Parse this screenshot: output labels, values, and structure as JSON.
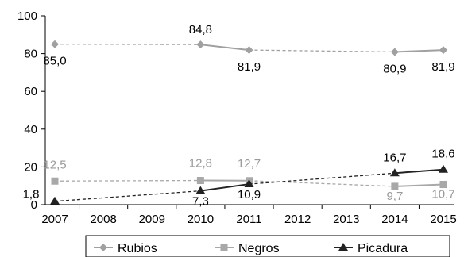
{
  "chart_data": {
    "type": "line",
    "title": "",
    "xlabel": "",
    "ylabel": "",
    "x": [
      2007,
      2008,
      2009,
      2010,
      2011,
      2012,
      2013,
      2014,
      2015
    ],
    "x_tick_labels": [
      "2007",
      "2008",
      "2009",
      "2010",
      "2011",
      "2012",
      "2013",
      "2014",
      "2015"
    ],
    "ylim": [
      0,
      100
    ],
    "y_ticks": [
      0,
      20,
      40,
      60,
      80,
      100
    ],
    "y_tick_labels": [
      "0",
      "20",
      "40",
      "60",
      "80",
      "100"
    ],
    "grid": false,
    "legend_position": "bottom",
    "series": [
      {
        "name": "Rubios",
        "color": "#a0a0a0",
        "marker": "diamond",
        "label_color": "#000000",
        "points": [
          {
            "x": 2007,
            "y": 85.0,
            "label": "85,0"
          },
          {
            "x": 2010,
            "y": 84.8,
            "label": "84,8"
          },
          {
            "x": 2011,
            "y": 81.9,
            "label": "81,9"
          },
          {
            "x": 2014,
            "y": 80.9,
            "label": "80,9"
          },
          {
            "x": 2015,
            "y": 81.9,
            "label": "81,9"
          }
        ]
      },
      {
        "name": "Negros",
        "color": "#a8a8a8",
        "marker": "square",
        "label_color": "#9a9a9a",
        "points": [
          {
            "x": 2007,
            "y": 12.5,
            "label": "12,5"
          },
          {
            "x": 2010,
            "y": 12.8,
            "label": "12,8"
          },
          {
            "x": 2011,
            "y": 12.7,
            "label": "12,7"
          },
          {
            "x": 2014,
            "y": 9.7,
            "label": "9,7"
          },
          {
            "x": 2015,
            "y": 10.7,
            "label": "10,7"
          }
        ]
      },
      {
        "name": "Picadura",
        "color": "#222222",
        "marker": "triangle",
        "label_color": "#000000",
        "points": [
          {
            "x": 2007,
            "y": 1.8,
            "label": "1,8"
          },
          {
            "x": 2010,
            "y": 7.3,
            "label": "7,3"
          },
          {
            "x": 2011,
            "y": 10.9,
            "label": "10,9"
          },
          {
            "x": 2014,
            "y": 16.7,
            "label": "16,7"
          },
          {
            "x": 2015,
            "y": 18.6,
            "label": "18,6"
          }
        ]
      }
    ]
  }
}
